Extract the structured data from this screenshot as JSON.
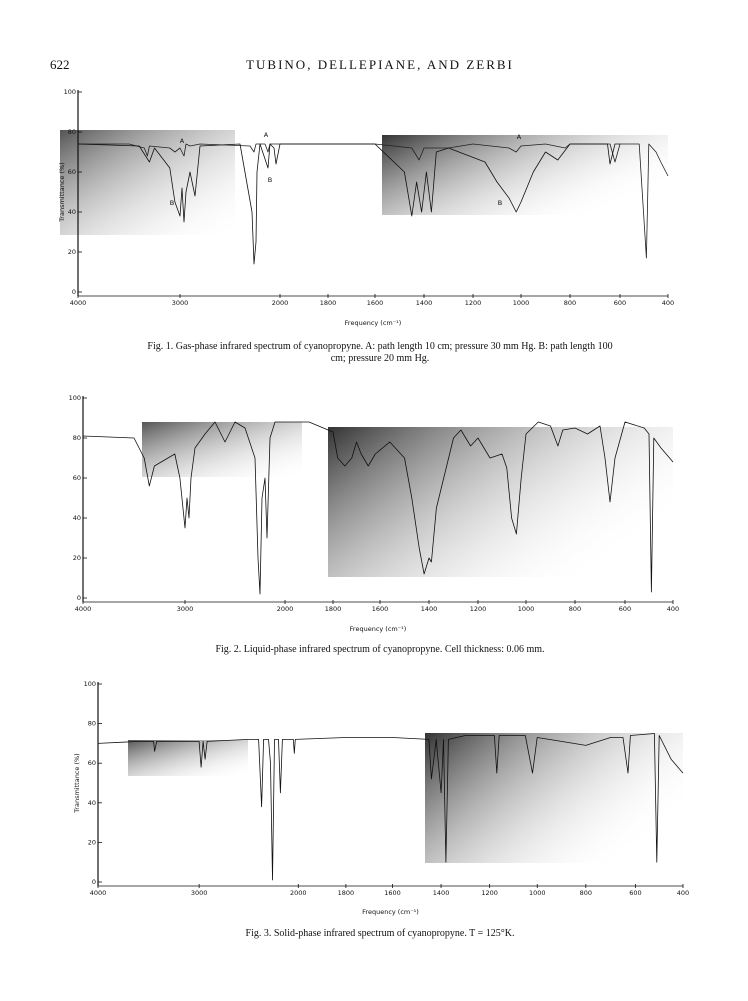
{
  "header": {
    "page_number": "622",
    "running_title": "TUBINO, DELLEPIANE, AND ZERBI"
  },
  "chart_data": [
    {
      "type": "line",
      "caption": "Fig. 1. Gas-phase infrared spectrum of cyanopropyne. A: path length 10 cm; pressure 30 mm Hg. B: path length 100 cm; pressure 20 mm Hg.",
      "xlabel": "Frequency (cm⁻¹)",
      "ylabel": "Transmittance (%)",
      "xlim": [
        4000,
        400
      ],
      "ylim": [
        0,
        100
      ],
      "xticks": [
        4000,
        3000,
        2000,
        1800,
        1600,
        1400,
        1200,
        1000,
        800,
        600,
        400
      ],
      "yticks": [
        0,
        20,
        40,
        60,
        80,
        100
      ],
      "series": [
        {
          "name": "A",
          "color": "#222222",
          "x": [
            4000,
            3500,
            3350,
            3320,
            3300,
            3100,
            3050,
            3000,
            2960,
            2940,
            2900,
            2800,
            2300,
            2260,
            2240,
            2150,
            2120,
            2100,
            2000,
            1600,
            1450,
            1420,
            1400,
            1300,
            1200,
            1050,
            1020,
            1000,
            900,
            820,
            800,
            640,
            620,
            600,
            520,
            490,
            480,
            450,
            430,
            400
          ],
          "values": [
            74,
            74,
            72,
            68,
            73,
            72,
            70,
            72,
            68,
            74,
            73,
            74,
            73,
            70,
            74,
            74,
            70,
            74,
            74,
            74,
            72,
            66,
            72,
            72,
            74,
            72,
            70,
            73,
            74,
            72,
            74,
            74,
            65,
            74,
            74,
            17,
            74,
            70,
            65,
            58
          ]
        },
        {
          "name": "B",
          "color": "#111111",
          "x": [
            4000,
            3400,
            3300,
            3250,
            3100,
            3050,
            3000,
            2980,
            2960,
            2940,
            2900,
            2850,
            2800,
            2400,
            2280,
            2260,
            2240,
            2230,
            2200,
            2120,
            2100,
            2060,
            2040,
            2000,
            1600,
            1480,
            1450,
            1430,
            1410,
            1390,
            1370,
            1350,
            1300,
            1150,
            1100,
            1050,
            1020,
            1000,
            950,
            900,
            850,
            800,
            650,
            640,
            620,
            600
          ],
          "values": [
            74,
            73,
            65,
            72,
            62,
            45,
            38,
            52,
            35,
            50,
            60,
            48,
            73,
            74,
            40,
            14,
            25,
            60,
            74,
            62,
            74,
            72,
            64,
            74,
            74,
            60,
            38,
            55,
            40,
            60,
            40,
            70,
            72,
            65,
            55,
            47,
            40,
            45,
            60,
            70,
            66,
            74,
            74,
            64,
            74,
            74
          ]
        }
      ]
    },
    {
      "type": "line",
      "caption": "Fig. 2. Liquid-phase infrared spectrum of cyanopropyne. Cell thickness: 0.06 mm.",
      "xlabel": "Frequency (cm⁻¹)",
      "xlim": [
        4000,
        400
      ],
      "ylim": [
        0,
        100
      ],
      "xticks": [
        4000,
        3000,
        2000,
        1800,
        1600,
        1400,
        1200,
        1000,
        800,
        600,
        400
      ],
      "yticks": [
        0,
        20,
        40,
        60,
        80,
        100
      ],
      "series": [
        {
          "color": "#111111",
          "x": [
            4000,
            3500,
            3400,
            3350,
            3300,
            3100,
            3050,
            3000,
            2980,
            2960,
            2940,
            2900,
            2800,
            2700,
            2600,
            2560,
            2500,
            2400,
            2300,
            2270,
            2250,
            2230,
            2200,
            2180,
            2150,
            2100,
            1900,
            1800,
            1780,
            1750,
            1720,
            1700,
            1680,
            1650,
            1620,
            1560,
            1500,
            1470,
            1440,
            1420,
            1400,
            1390,
            1370,
            1300,
            1270,
            1230,
            1200,
            1150,
            1100,
            1080,
            1060,
            1040,
            1020,
            1000,
            950,
            900,
            870,
            850,
            800,
            750,
            700,
            680,
            660,
            640,
            600,
            520,
            500,
            490,
            480,
            450,
            400
          ],
          "values": [
            81,
            80,
            70,
            56,
            66,
            72,
            60,
            35,
            50,
            40,
            60,
            75,
            82,
            88,
            78,
            82,
            88,
            85,
            70,
            20,
            2,
            50,
            60,
            30,
            80,
            88,
            88,
            83,
            70,
            66,
            70,
            78,
            72,
            66,
            72,
            78,
            70,
            50,
            25,
            12,
            20,
            18,
            45,
            80,
            84,
            76,
            80,
            70,
            72,
            65,
            40,
            32,
            60,
            82,
            88,
            86,
            76,
            84,
            85,
            82,
            86,
            70,
            48,
            70,
            88,
            85,
            82,
            3,
            80,
            75,
            68
          ]
        }
      ]
    },
    {
      "type": "line",
      "caption": "Fig. 3. Solid-phase infrared spectrum of cyanopropyne. T = 125°K.",
      "xlabel": "Frequency (cm⁻¹)",
      "ylabel": "Transmittance (%)",
      "xlim": [
        4000,
        400
      ],
      "ylim": [
        0,
        100
      ],
      "xticks": [
        4000,
        3000,
        2000,
        1800,
        1600,
        1400,
        1200,
        1000,
        800,
        600,
        400
      ],
      "yticks": [
        0,
        20,
        40,
        60,
        80,
        100
      ],
      "series": [
        {
          "color": "#111111",
          "x": [
            4000,
            3600,
            3450,
            3440,
            3420,
            3000,
            2980,
            2960,
            2940,
            2920,
            2500,
            2400,
            2370,
            2350,
            2300,
            2280,
            2260,
            2240,
            2200,
            2180,
            2160,
            2050,
            2040,
            2030,
            1800,
            1600,
            1450,
            1440,
            1420,
            1400,
            1390,
            1380,
            1370,
            1300,
            1180,
            1170,
            1160,
            1050,
            1020,
            1000,
            900,
            800,
            700,
            650,
            630,
            620,
            520,
            510,
            500,
            450,
            400
          ],
          "values": [
            70,
            71,
            71,
            66,
            71,
            71,
            58,
            71,
            62,
            71,
            72,
            72,
            38,
            72,
            72,
            60,
            1,
            72,
            72,
            45,
            72,
            72,
            65,
            72,
            73,
            73,
            72,
            52,
            72,
            45,
            72,
            10,
            72,
            74,
            74,
            55,
            74,
            74,
            55,
            73,
            71,
            69,
            73,
            73,
            55,
            74,
            75,
            10,
            74,
            62,
            55
          ]
        }
      ]
    }
  ]
}
